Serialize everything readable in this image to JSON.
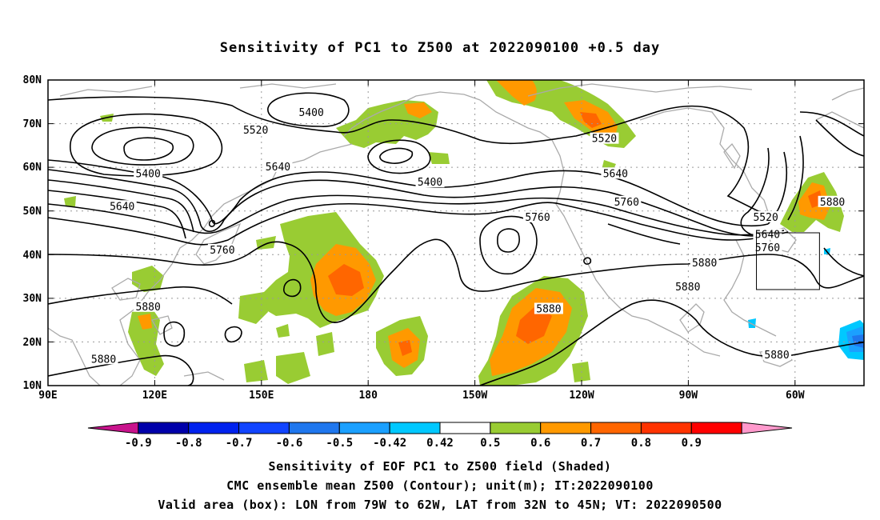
{
  "title": "Sensitivity of PC1 to Z500 at 2022090100 +0.5 day",
  "lat_ticks": [
    "80N",
    "70N",
    "60N",
    "50N",
    "40N",
    "30N",
    "20N",
    "10N"
  ],
  "lon_ticks": [
    "90E",
    "120E",
    "150E",
    "180",
    "150W",
    "120W",
    "90W",
    "60W"
  ],
  "contour_labels": [
    {
      "text": "5400",
      "lon": 161,
      "lat": 72.5
    },
    {
      "text": "5520",
      "lon": 146,
      "lat": 68.5
    },
    {
      "text": "5400",
      "lon": 117,
      "lat": 58.5
    },
    {
      "text": "5640",
      "lon": 152,
      "lat": 60
    },
    {
      "text": "5400",
      "lon": 193,
      "lat": 56.5
    },
    {
      "text": "5520",
      "lon": 240,
      "lat": 66.5
    },
    {
      "text": "5640",
      "lon": 243,
      "lat": 58.5
    },
    {
      "text": "5640",
      "lon": 110,
      "lat": 51
    },
    {
      "text": "5760",
      "lon": 246,
      "lat": 52
    },
    {
      "text": "5760",
      "lon": 222,
      "lat": 48.5
    },
    {
      "text": "5760",
      "lon": 137,
      "lat": 41
    },
    {
      "text": "5520",
      "lon": 283.5,
      "lat": 48.5
    },
    {
      "text": "5640",
      "lon": 284,
      "lat": 44.5
    },
    {
      "text": "5760",
      "lon": 284,
      "lat": 41.5
    },
    {
      "text": "5880",
      "lon": 301.5,
      "lat": 52
    },
    {
      "text": "5880",
      "lon": 267,
      "lat": 38
    },
    {
      "text": "5880",
      "lon": 117,
      "lat": 28
    },
    {
      "text": "5880",
      "lon": 225,
      "lat": 27.5
    },
    {
      "text": "5880",
      "lon": 262.5,
      "lat": 32.5
    },
    {
      "text": "5880",
      "lon": 105,
      "lat": 16
    },
    {
      "text": "5880",
      "lon": 286.5,
      "lat": 17
    }
  ],
  "colorbar": {
    "labels": [
      "-0.9",
      "-0.8",
      "-0.7",
      "-0.6",
      "-0.5",
      "-0.42",
      "0.42",
      "0.5",
      "0.6",
      "0.7",
      "0.8",
      "0.9"
    ],
    "colors": [
      "#c8138c",
      "#0000aa",
      "#0022ee",
      "#1144ff",
      "#1f77ee",
      "#1ba0ff",
      "#00c8ff",
      "#ffffff",
      "#99cc33",
      "#ff9900",
      "#ff6600",
      "#ff3300",
      "#ff0000",
      "#ff99cc"
    ]
  },
  "captions": [
    "Sensitivity of EOF PC1 to Z500 field (Shaded)",
    "CMC ensemble mean Z500 (Contour); unit(m); IT:2022090100",
    "Valid area (box): LON from 79W to 62W, LAT from 32N to 45N; VT: 2022090500"
  ],
  "box": {
    "lon_min": -79,
    "lon_max": -62,
    "lat_min": 32,
    "lat_max": 45
  }
}
